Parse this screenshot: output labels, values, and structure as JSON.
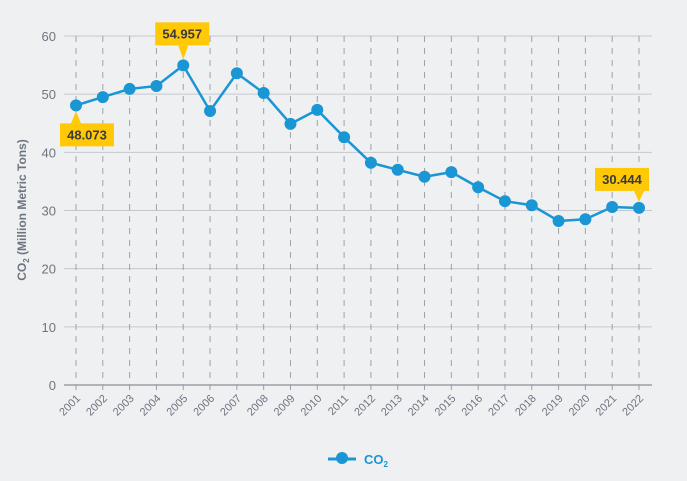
{
  "chart_data": {
    "type": "line",
    "title": "",
    "xlabel": "",
    "ylabel": {
      "main": "CO",
      "sub": "2",
      "rest": " (Million Metric Tons)"
    },
    "ylim": [
      0,
      60
    ],
    "yticks": [
      "0",
      "10",
      "20",
      "30",
      "40",
      "50",
      "60"
    ],
    "grid": true,
    "categories": [
      "2001",
      "2002",
      "2003",
      "2004",
      "2005",
      "2006",
      "2007",
      "2008",
      "2009",
      "2010",
      "2011",
      "2012",
      "2013",
      "2014",
      "2015",
      "2016",
      "2017",
      "2018",
      "2019",
      "2020",
      "2021",
      "2022"
    ],
    "series": [
      {
        "name": "CO2",
        "color": "#1a96d4",
        "values": [
          48.073,
          49.5,
          50.9,
          51.4,
          54.957,
          47.1,
          53.6,
          50.2,
          44.9,
          47.3,
          42.6,
          38.2,
          37.0,
          35.8,
          36.6,
          34.0,
          31.6,
          30.9,
          28.2,
          28.5,
          30.6,
          30.444
        ]
      }
    ],
    "annotations": [
      {
        "index": 0,
        "text": "48.073",
        "placement": "below"
      },
      {
        "index": 4,
        "text": "54.957",
        "placement": "above"
      },
      {
        "index": 21,
        "text": "30.444",
        "placement": "above"
      }
    ],
    "legend": {
      "placement": "bottom",
      "label_main": "CO",
      "label_sub": "2"
    },
    "callout_color": "#ffc907"
  }
}
